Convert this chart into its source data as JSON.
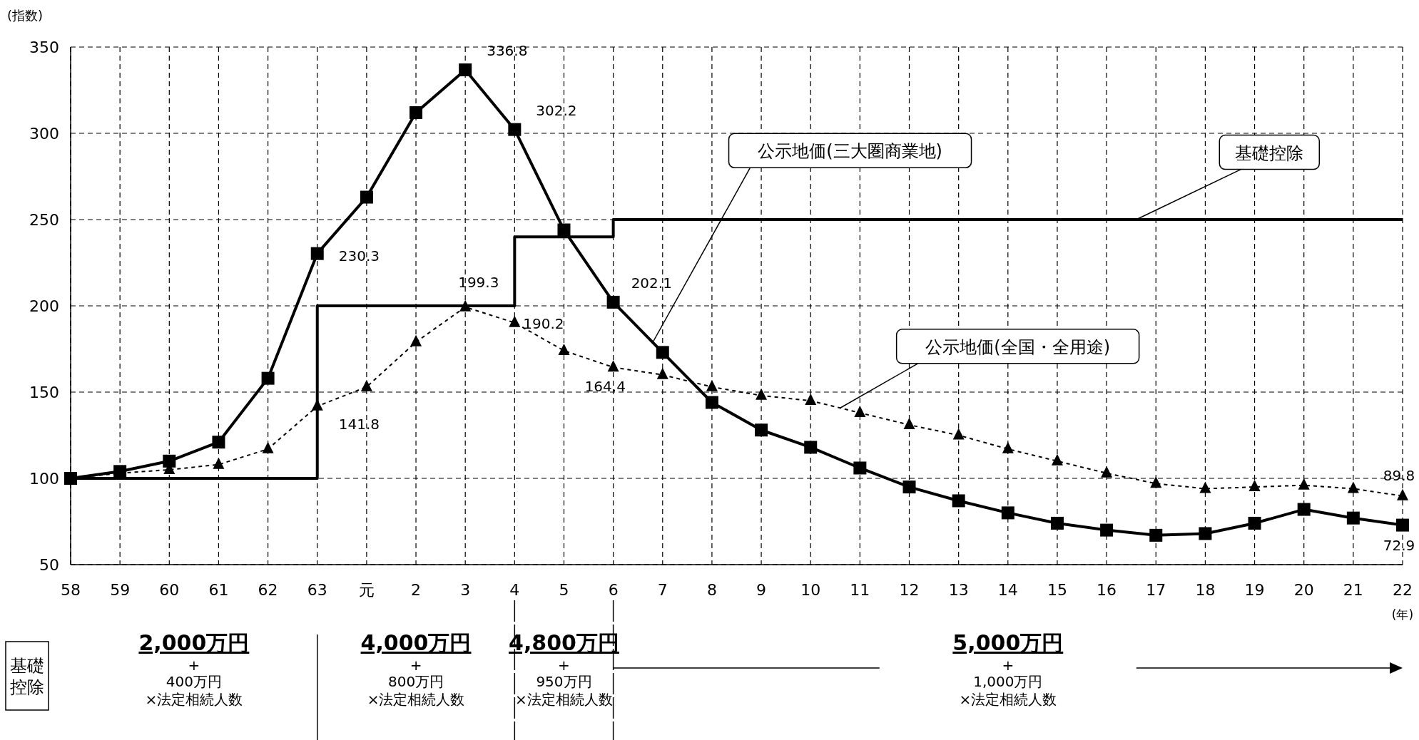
{
  "chart_data": {
    "type": "line",
    "ylabel": "(指数)",
    "xlabel": "(年)",
    "categories": [
      "58",
      "59",
      "60",
      "61",
      "62",
      "63",
      "元",
      "2",
      "3",
      "4",
      "5",
      "6",
      "7",
      "8",
      "9",
      "10",
      "11",
      "12",
      "13",
      "14",
      "15",
      "16",
      "17",
      "18",
      "19",
      "20",
      "21",
      "22"
    ],
    "ylim": [
      50,
      350
    ],
    "yticks": [
      50,
      100,
      150,
      200,
      250,
      300,
      350
    ],
    "grid": true,
    "legend": false,
    "series": [
      {
        "name": "公示地価(三大圏商業地)",
        "color": "#000000",
        "marker": "square",
        "line_style": "solid",
        "values": [
          100,
          104,
          110,
          121,
          158,
          230.3,
          263,
          312,
          336.8,
          302.2,
          244,
          202.1,
          173,
          144,
          128,
          118,
          106,
          95,
          87,
          80,
          74,
          70,
          67,
          68,
          74,
          82,
          77,
          72.9
        ],
        "value_labels": [
          null,
          null,
          null,
          null,
          null,
          "230.3",
          null,
          null,
          "336.8",
          "302.2",
          null,
          "202.1",
          null,
          null,
          null,
          null,
          null,
          null,
          null,
          null,
          null,
          null,
          null,
          null,
          null,
          null,
          null,
          "72.9"
        ]
      },
      {
        "name": "公示地価(全国・全用途)",
        "color": "#000000",
        "marker": "triangle",
        "line_style": "dotted",
        "values": [
          100,
          103,
          105,
          108,
          117,
          141.8,
          153,
          179,
          199.3,
          190.2,
          174,
          164.4,
          160,
          153,
          148,
          145,
          138,
          131,
          125,
          117,
          110,
          103,
          97,
          94,
          95,
          96,
          94,
          89.8
        ],
        "value_labels": [
          null,
          null,
          null,
          null,
          null,
          "141.8",
          null,
          null,
          "199.3",
          "190.2",
          null,
          "164.4",
          null,
          null,
          null,
          null,
          null,
          null,
          null,
          null,
          null,
          null,
          null,
          null,
          null,
          null,
          null,
          "89.8"
        ]
      },
      {
        "name": "基礎控除",
        "type": "step",
        "color": "#000000",
        "marker": "none",
        "line_style": "solid",
        "values": [
          100,
          100,
          100,
          100,
          100,
          200,
          200,
          200,
          200,
          240,
          240,
          250,
          250,
          250,
          250,
          250,
          250,
          250,
          250,
          250,
          250,
          250,
          250,
          250,
          250,
          250,
          250,
          250
        ]
      }
    ],
    "annotations": [
      "基礎控除",
      "2,000万円\n+\n400万円\n×法定相続人数",
      "4,000万円\n+\n800万円\n×法定相続人数",
      "4,800万円\n+\n950万円\n×法定相続人数",
      "5,000万円\n+\n1,000万円\n×法定相続人数"
    ]
  }
}
